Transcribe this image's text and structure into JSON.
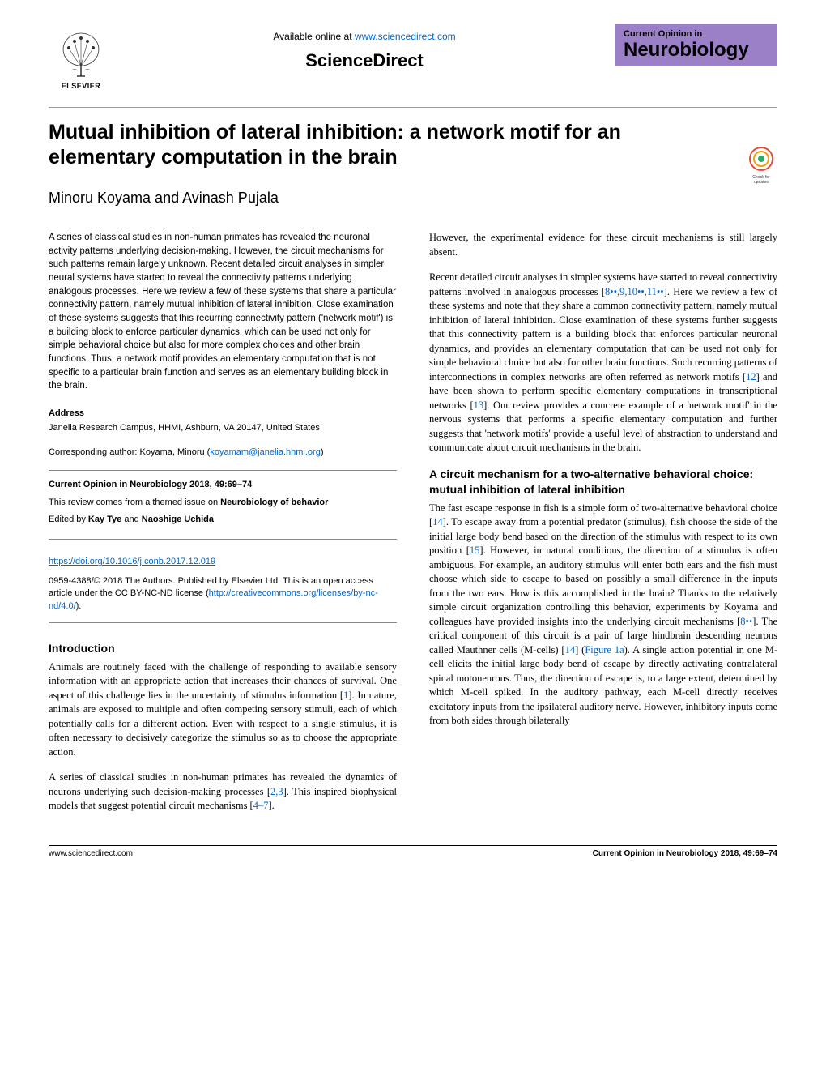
{
  "header": {
    "available_text_prefix": "Available online at ",
    "available_link": "www.sciencedirect.com",
    "sciencedirect": "ScienceDirect",
    "elsevier_label": "ELSEVIER",
    "journal_line1": "Current Opinion in",
    "journal_line2": "Neurobiology",
    "journal_bg": "#9b7fc7"
  },
  "title": "Mutual inhibition of lateral inhibition: a network motif for an elementary computation in the brain",
  "authors": "Minoru Koyama and Avinash Pujala",
  "check_updates_label": "Check for updates",
  "abstract": "A series of classical studies in non-human primates has revealed the neuronal activity patterns underlying decision-making. However, the circuit mechanisms for such patterns remain largely unknown. Recent detailed circuit analyses in simpler neural systems have started to reveal the connectivity patterns underlying analogous processes. Here we review a few of these systems that share a particular connectivity pattern, namely mutual inhibition of lateral inhibition. Close examination of these systems suggests that this recurring connectivity pattern ('network motif') is a building block to enforce particular dynamics, which can be used not only for simple behavioral choice but also for more complex choices and other brain functions. Thus, a network motif provides an elementary computation that is not specific to a particular brain function and serves as an elementary building block in the brain.",
  "address": {
    "heading": "Address",
    "text": "Janelia Research Campus, HHMI, Ashburn, VA 20147, United States"
  },
  "corresponding": {
    "prefix": "Corresponding author: Koyama, Minoru (",
    "email": "koyamam@janelia.hhmi.org",
    "suffix": ")"
  },
  "journal_info": {
    "citation": "Current Opinion in Neurobiology 2018, 49:69–74",
    "themed": "This review comes from a themed issue on ",
    "themed_bold": "Neurobiology of behavior",
    "edited_prefix": "Edited by ",
    "editor1": "Kay Tye",
    "and": " and ",
    "editor2": "Naoshige Uchida"
  },
  "doi": "https://doi.org/10.1016/j.conb.2017.12.019",
  "copyright": {
    "text": "0959-4388/© 2018 The Authors. Published by Elsevier Ltd. This is an open access article under the CC BY-NC-ND license (",
    "link": "http://creativecommons.org/licenses/by-nc-nd/4.0/",
    "suffix": ")."
  },
  "sections": {
    "intro_heading": "Introduction",
    "intro_p1": "Animals are routinely faced with the challenge of responding to available sensory information with an appropriate action that increases their chances of survival. One aspect of this challenge lies in the uncertainty of stimulus information [1]. In nature, animals are exposed to multiple and often competing sensory stimuli, each of which potentially calls for a different action. Even with respect to a single stimulus, it is often necessary to decisively categorize the stimulus so as to choose the appropriate action.",
    "intro_p2": "A series of classical studies in non-human primates has revealed the dynamics of neurons underlying such decision-making processes [2,3]. This inspired biophysical models that suggest potential circuit mechanisms [4–7].",
    "right_p1": "However, the experimental evidence for these circuit mechanisms is still largely absent.",
    "right_p2": "Recent detailed circuit analyses in simpler systems have started to reveal connectivity patterns involved in analogous processes [8••,9,10••,11••]. Here we review a few of these systems and note that they share a common connectivity pattern, namely mutual inhibition of lateral inhibition. Close examination of these systems further suggests that this connectivity pattern is a building block that enforces particular neuronal dynamics, and provides an elementary computation that can be used not only for simple behavioral choice but also for other brain functions. Such recurring patterns of interconnections in complex networks are often referred as network motifs [12] and have been shown to perform specific elementary computations in transcriptional networks [13]. Our review provides a concrete example of a 'network motif' in the nervous systems that performs a specific elementary computation and further suggests that 'network motifs' provide a useful level of abstraction to understand and communicate about circuit mechanisms in the brain.",
    "s2_heading": "A circuit mechanism for a two-alternative behavioral choice: mutual inhibition of lateral inhibition",
    "s2_p1": "The fast escape response in fish is a simple form of two-alternative behavioral choice [14]. To escape away from a potential predator (stimulus), fish choose the side of the initial large body bend based on the direction of the stimulus with respect to its own position [15]. However, in natural conditions, the direction of a stimulus is often ambiguous. For example, an auditory stimulus will enter both ears and the fish must choose which side to escape to based on possibly a small difference in the inputs from the two ears. How is this accomplished in the brain? Thanks to the relatively simple circuit organization controlling this behavior, experiments by Koyama and colleagues have provided insights into the underlying circuit mechanisms [8••]. The critical component of this circuit is a pair of large hindbrain descending neurons called Mauthner cells (M-cells) [14] (Figure 1a). A single action potential in one M-cell elicits the initial large body bend of escape by directly activating contralateral spinal motoneurons. Thus, the direction of escape is, to a large extent, determined by which M-cell spiked. In the auditory pathway, each M-cell directly receives excitatory inputs from the ipsilateral auditory nerve. However, inhibitory inputs come from both sides through bilaterally"
  },
  "footer": {
    "left": "www.sciencedirect.com",
    "right": "Current Opinion in Neurobiology 2018, 49:69–74"
  },
  "ref_color": "#0066cc"
}
